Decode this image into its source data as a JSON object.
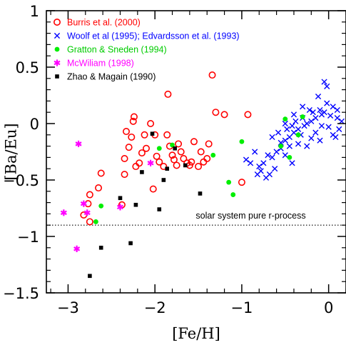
{
  "chart_data": {
    "type": "scatter",
    "title": "",
    "xlabel": "[Fe/H]",
    "ylabel": "[Ba/Eu]",
    "xlim": [
      -3.25,
      0.2
    ],
    "ylim": [
      -1.5,
      1.0
    ],
    "xticks": [
      -3,
      -2,
      -1,
      0
    ],
    "yticks": [
      -1.5,
      -1,
      -0.5,
      0,
      0.5,
      1
    ],
    "xtick_labels": [
      "−3",
      "−2",
      "−1",
      "0"
    ],
    "ytick_labels": [
      "−1.5",
      "−1",
      "−0.5",
      "0",
      "0.5",
      "1"
    ],
    "grid": false,
    "legend_position": "top-left",
    "reference_line": {
      "y": -0.9,
      "label": "solar system pure r-process",
      "style": "dotted"
    },
    "series": [
      {
        "name": "Burris et al. (2000)",
        "marker": "open-circle",
        "color": "#ff0000",
        "points": [
          [
            -2.75,
            -0.87
          ],
          [
            -2.77,
            -0.71
          ],
          [
            -2.82,
            -0.81
          ],
          [
            -2.75,
            -0.63
          ],
          [
            -2.65,
            -0.57
          ],
          [
            -2.62,
            -0.44
          ],
          [
            -2.38,
            -0.72
          ],
          [
            -2.35,
            -0.45
          ],
          [
            -2.35,
            -0.31
          ],
          [
            -2.33,
            -0.07
          ],
          [
            -2.3,
            -0.21
          ],
          [
            -2.27,
            -0.12
          ],
          [
            -2.25,
            0.02
          ],
          [
            -2.24,
            0.06
          ],
          [
            -2.22,
            -0.38
          ],
          [
            -2.18,
            -0.35
          ],
          [
            -2.15,
            -0.26
          ],
          [
            -2.12,
            -0.1
          ],
          [
            -2.1,
            -0.22
          ],
          [
            -2.05,
            0.0
          ],
          [
            -2.02,
            -0.58
          ],
          [
            -2.0,
            -0.1
          ],
          [
            -1.98,
            -0.29
          ],
          [
            -1.95,
            -0.34
          ],
          [
            -1.9,
            -0.38
          ],
          [
            -1.86,
            -0.1
          ],
          [
            -1.85,
            0.26
          ],
          [
            -1.83,
            -0.2
          ],
          [
            -1.8,
            -0.28
          ],
          [
            -1.78,
            -0.32
          ],
          [
            -1.75,
            -0.37
          ],
          [
            -1.73,
            -0.18
          ],
          [
            -1.7,
            -0.25
          ],
          [
            -1.67,
            -0.31
          ],
          [
            -1.63,
            -0.35
          ],
          [
            -1.6,
            -0.37
          ],
          [
            -1.58,
            -0.34
          ],
          [
            -1.55,
            -0.16
          ],
          [
            -1.5,
            -0.38
          ],
          [
            -1.47,
            -0.25
          ],
          [
            -1.44,
            -0.34
          ],
          [
            -1.4,
            -0.31
          ],
          [
            -1.38,
            -0.18
          ],
          [
            -1.34,
            0.43
          ],
          [
            -1.3,
            0.1
          ],
          [
            -1.2,
            0.08
          ],
          [
            -1.0,
            -0.52
          ],
          [
            -0.93,
            0.08
          ]
        ]
      },
      {
        "name": "Woolf et al (1995); Edvardsson et al. (1993)",
        "marker": "cross",
        "color": "#0000ff",
        "points": [
          [
            -0.05,
            0.37
          ],
          [
            -0.02,
            0.33
          ],
          [
            -0.12,
            0.24
          ],
          [
            -0.08,
            0.08
          ],
          [
            0.02,
            0.07
          ],
          [
            0.1,
            0.05
          ],
          [
            -0.15,
            0.05
          ],
          [
            -0.2,
            0.02
          ],
          [
            -0.25,
            0.0
          ],
          [
            -0.28,
            -0.02
          ],
          [
            -0.35,
            -0.05
          ],
          [
            -0.4,
            -0.08
          ],
          [
            -0.45,
            -0.12
          ],
          [
            -0.5,
            -0.15
          ],
          [
            -0.55,
            -0.17
          ],
          [
            0.05,
            -0.1
          ],
          [
            0.12,
            -0.05
          ],
          [
            0.0,
            -0.03
          ],
          [
            -0.05,
            0.1
          ],
          [
            -0.1,
            0.12
          ],
          [
            -0.18,
            0.1
          ],
          [
            -0.3,
            0.05
          ],
          [
            -0.38,
            0.02
          ],
          [
            -0.42,
            -0.02
          ],
          [
            -0.48,
            -0.05
          ],
          [
            0.15,
            0.02
          ],
          [
            0.08,
            -0.12
          ],
          [
            -0.1,
            -0.15
          ],
          [
            -0.2,
            -0.13
          ],
          [
            -0.32,
            -0.1
          ],
          [
            -0.45,
            -0.2
          ],
          [
            -0.55,
            -0.22
          ],
          [
            -0.6,
            -0.25
          ],
          [
            -0.65,
            -0.3
          ],
          [
            -0.7,
            -0.28
          ],
          [
            -0.75,
            -0.35
          ],
          [
            -0.8,
            -0.38
          ],
          [
            -0.85,
            -0.25
          ],
          [
            -0.9,
            -0.35
          ],
          [
            -0.62,
            -0.4
          ],
          [
            -0.68,
            -0.45
          ],
          [
            -0.72,
            -0.48
          ],
          [
            -0.5,
            -0.28
          ],
          [
            -0.42,
            -0.35
          ],
          [
            -0.35,
            -0.18
          ],
          [
            -0.25,
            -0.2
          ],
          [
            -0.15,
            -0.08
          ],
          [
            -0.08,
            -0.02
          ],
          [
            0.05,
            0.15
          ],
          [
            0.1,
            0.12
          ],
          [
            -0.02,
            0.18
          ],
          [
            -0.22,
            0.12
          ],
          [
            -0.3,
            0.15
          ],
          [
            -0.4,
            0.08
          ],
          [
            -0.5,
            0.0
          ],
          [
            -0.58,
            -0.08
          ],
          [
            -0.65,
            -0.12
          ],
          [
            -0.78,
            -0.42
          ],
          [
            -0.82,
            -0.45
          ],
          [
            -0.95,
            -0.32
          ]
        ]
      },
      {
        "name": "Gratton & Sneden (1994)",
        "marker": "filled-circle",
        "color": "#00ee00",
        "points": [
          [
            -2.68,
            -0.87
          ],
          [
            -2.62,
            -0.73
          ],
          [
            -1.95,
            -0.22
          ],
          [
            -1.8,
            -0.19
          ],
          [
            -1.33,
            -0.28
          ],
          [
            -1.15,
            -0.52
          ],
          [
            -1.1,
            -0.63
          ],
          [
            -1.0,
            -0.16
          ],
          [
            -0.55,
            -0.2
          ],
          [
            -0.5,
            0.04
          ],
          [
            -0.45,
            -0.3
          ],
          [
            -0.35,
            -0.1
          ],
          [
            -0.3,
            0.06
          ]
        ]
      },
      {
        "name": "McWiliam  (1998)",
        "marker": "asterisk",
        "color": "#ff00ff",
        "points": [
          [
            -3.05,
            -0.79
          ],
          [
            -2.9,
            -1.11
          ],
          [
            -2.88,
            -0.18
          ],
          [
            -2.82,
            -0.71
          ],
          [
            -2.78,
            -0.79
          ],
          [
            -2.4,
            -0.74
          ],
          [
            -2.05,
            -0.35
          ]
        ]
      },
      {
        "name": "Zhao & Magain (1990)",
        "marker": "filled-square",
        "color": "#000000",
        "points": [
          [
            -2.75,
            -1.35
          ],
          [
            -2.62,
            -1.1
          ],
          [
            -2.4,
            -0.66
          ],
          [
            -2.28,
            -1.06
          ],
          [
            -2.22,
            -0.72
          ],
          [
            -2.15,
            -0.43
          ],
          [
            -2.03,
            -0.09
          ],
          [
            -1.95,
            -0.76
          ],
          [
            -1.9,
            -0.5
          ],
          [
            -1.86,
            -0.4
          ],
          [
            -1.77,
            -0.22
          ],
          [
            -1.65,
            -0.37
          ],
          [
            -1.48,
            -0.62
          ]
        ]
      }
    ]
  }
}
